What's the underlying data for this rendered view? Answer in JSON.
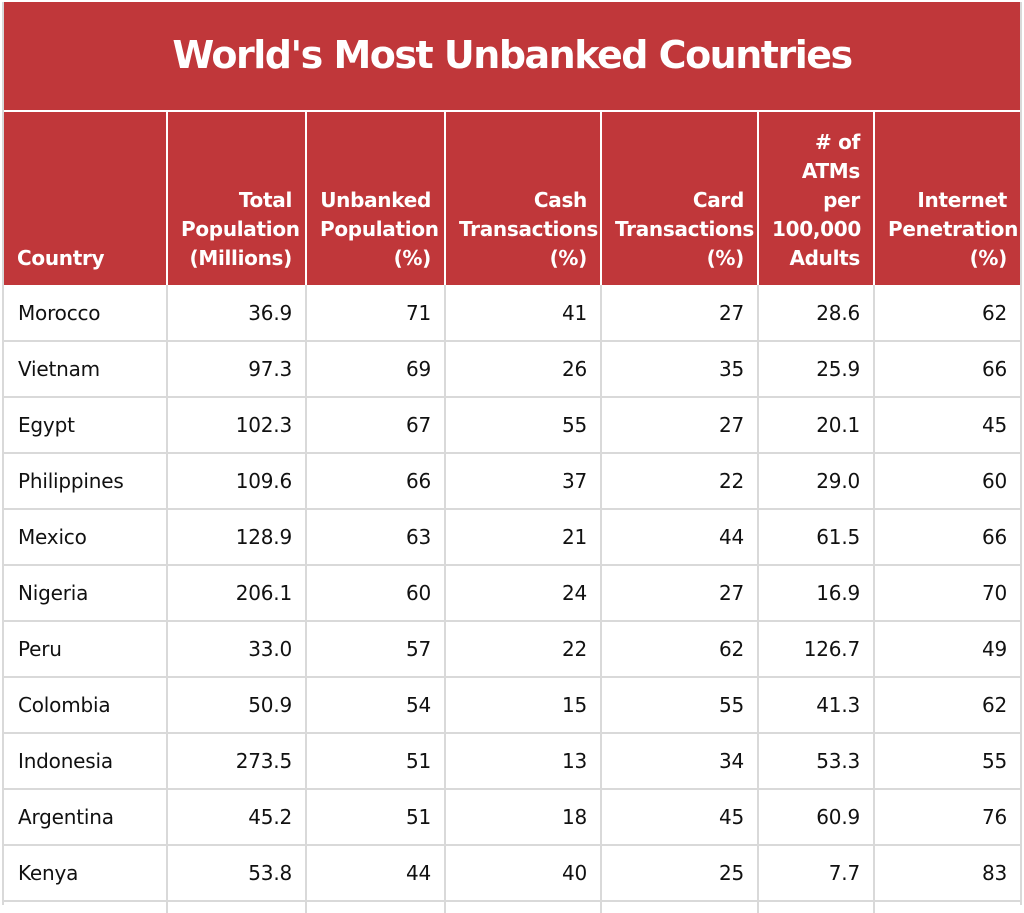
{
  "chart_data": {
    "type": "table",
    "title": "World's Most Unbanked Countries",
    "columns": [
      {
        "key": "country",
        "label_lines": [
          "Country"
        ]
      },
      {
        "key": "total_population",
        "label_lines": [
          "Total",
          "Population",
          "(Millions)"
        ]
      },
      {
        "key": "unbanked_population",
        "label_lines": [
          "Unbanked",
          "Population",
          "(%)"
        ]
      },
      {
        "key": "cash_transactions",
        "label_lines": [
          "Cash",
          "Transactions",
          "(%)"
        ]
      },
      {
        "key": "card_transactions",
        "label_lines": [
          "Card",
          "Transactions",
          "(%)"
        ]
      },
      {
        "key": "atms_per_100k",
        "label_lines": [
          "# of",
          "ATMs",
          "per",
          "100,000",
          "Adults"
        ]
      },
      {
        "key": "internet_penetration",
        "label_lines": [
          "Internet",
          "Penetration",
          "(%)"
        ]
      }
    ],
    "rows": [
      [
        "Morocco",
        "36.9",
        "71",
        "41",
        "27",
        "28.6",
        "62"
      ],
      [
        "Vietnam",
        "97.3",
        "69",
        "26",
        "35",
        "25.9",
        "66"
      ],
      [
        "Egypt",
        "102.3",
        "67",
        "55",
        "27",
        "20.1",
        "45"
      ],
      [
        "Philippines",
        "109.6",
        "66",
        "37",
        "22",
        "29.0",
        "60"
      ],
      [
        "Mexico",
        "128.9",
        "63",
        "21",
        "44",
        "61.5",
        "66"
      ],
      [
        "Nigeria",
        "206.1",
        "60",
        "24",
        "27",
        "16.9",
        "70"
      ],
      [
        "Peru",
        "33.0",
        "57",
        "22",
        "62",
        "126.7",
        "49"
      ],
      [
        "Colombia",
        "50.9",
        "54",
        "15",
        "55",
        "41.3",
        "62"
      ],
      [
        "Indonesia",
        "273.5",
        "51",
        "13",
        "34",
        "53.3",
        "55"
      ],
      [
        "Argentina",
        "45.2",
        "51",
        "18",
        "45",
        "60.9",
        "76"
      ],
      [
        "Kenya",
        "53.8",
        "44",
        "40",
        "25",
        "7.7",
        "83"
      ]
    ]
  },
  "colors": {
    "header_red": "#c0373a",
    "header_text": "#ffffff",
    "grid_line": "#d9d9d9",
    "body_text": "#111111"
  }
}
